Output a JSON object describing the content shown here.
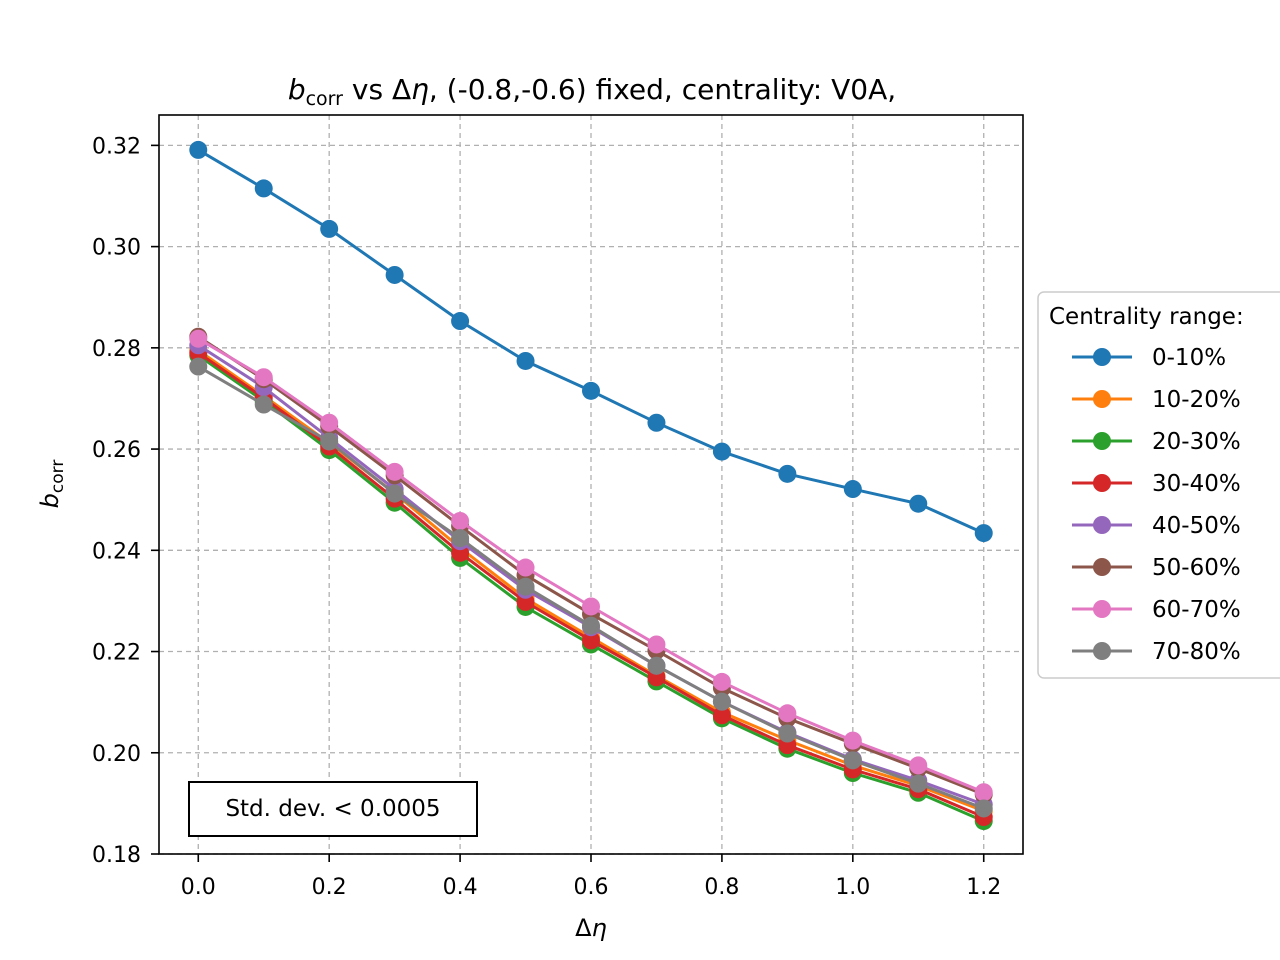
{
  "chart_data": {
    "type": "line",
    "title": {
      "symbol": "b",
      "subscript": "corr",
      "delta": "Δ",
      "eta": "η",
      "rest_before": " vs ",
      "rest_after": ", (-0.8,-0.6) fixed, centrality: V0A,"
    },
    "xlabel": {
      "delta": "Δ",
      "eta": "η"
    },
    "ylabel": {
      "symbol": "b",
      "subscript": "corr"
    },
    "xlim": [
      -0.06,
      1.26
    ],
    "ylim": [
      0.18,
      0.326
    ],
    "x_ticks": [
      0.0,
      0.2,
      0.4,
      0.6,
      0.8,
      1.0,
      1.2
    ],
    "x_tick_labels": [
      "0.0",
      "0.2",
      "0.4",
      "0.6",
      "0.8",
      "1.0",
      "1.2"
    ],
    "y_ticks": [
      0.18,
      0.2,
      0.22,
      0.24,
      0.26,
      0.28,
      0.3,
      0.32
    ],
    "y_tick_labels": [
      "0.18",
      "0.20",
      "0.22",
      "0.24",
      "0.26",
      "0.28",
      "0.30",
      "0.32"
    ],
    "grid": true,
    "grid_style": "dashed",
    "legend_title": "Centrality range:",
    "legend_placement": "outside-right",
    "annotation": "Std. dev. < 0.0005",
    "x": [
      0.0,
      0.1,
      0.2,
      0.3,
      0.4,
      0.5,
      0.6,
      0.7,
      0.8,
      0.9,
      1.0,
      1.1,
      1.2
    ],
    "series": [
      {
        "name": "0-10%",
        "color": "#1f77b4",
        "values": [
          0.3191,
          0.3115,
          0.3035,
          0.2944,
          0.2853,
          0.2774,
          0.2715,
          0.2652,
          0.2595,
          0.2551,
          0.2521,
          0.2492,
          0.2434
        ]
      },
      {
        "name": "10-20%",
        "color": "#ff7f0e",
        "values": [
          0.2795,
          0.2705,
          0.2612,
          0.2513,
          0.2405,
          0.2305,
          0.2228,
          0.2152,
          0.208,
          0.2025,
          0.1975,
          0.1935,
          0.1885
        ]
      },
      {
        "name": "20-30%",
        "color": "#2ca02c",
        "values": [
          0.2785,
          0.2695,
          0.2598,
          0.2494,
          0.2385,
          0.2288,
          0.2214,
          0.2141,
          0.2068,
          0.2008,
          0.196,
          0.1921,
          0.1865
        ]
      },
      {
        "name": "30-40%",
        "color": "#d62728",
        "values": [
          0.279,
          0.2701,
          0.2605,
          0.2502,
          0.2395,
          0.2298,
          0.2222,
          0.2149,
          0.2074,
          0.2015,
          0.1967,
          0.1928,
          0.1873
        ]
      },
      {
        "name": "40-50%",
        "color": "#9467bd",
        "values": [
          0.2805,
          0.2722,
          0.2622,
          0.2521,
          0.2418,
          0.2322,
          0.2248,
          0.2172,
          0.2101,
          0.204,
          0.1987,
          0.1945,
          0.1898
        ]
      },
      {
        "name": "50-60%",
        "color": "#8c564b",
        "values": [
          0.2822,
          0.2738,
          0.2645,
          0.2548,
          0.2448,
          0.2351,
          0.2274,
          0.2202,
          0.2128,
          0.2068,
          0.2018,
          0.1969,
          0.1918
        ]
      },
      {
        "name": "60-70%",
        "color": "#e377c2",
        "values": [
          0.2818,
          0.2742,
          0.2652,
          0.2555,
          0.2458,
          0.2366,
          0.2289,
          0.2214,
          0.214,
          0.2078,
          0.2024,
          0.1975,
          0.1922
        ]
      },
      {
        "name": "70-80%",
        "color": "#7f7f7f",
        "values": [
          0.2763,
          0.2688,
          0.2615,
          0.2512,
          0.2424,
          0.2328,
          0.2251,
          0.2172,
          0.2101,
          0.2038,
          0.1985,
          0.1939,
          0.189
        ]
      }
    ]
  }
}
